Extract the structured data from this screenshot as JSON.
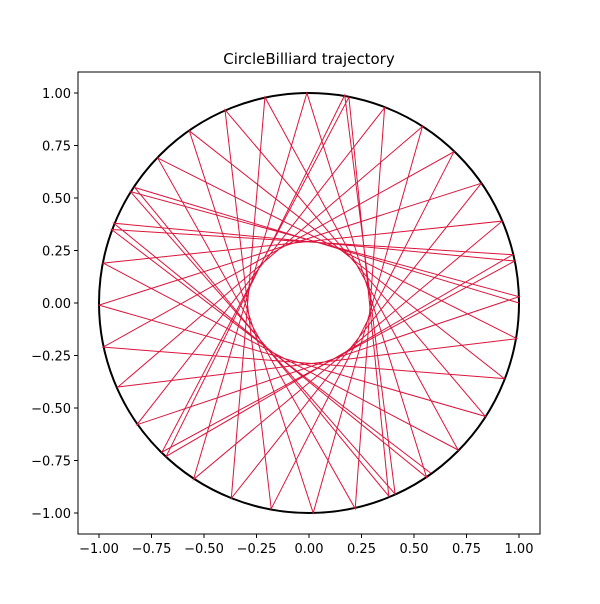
{
  "chart_data": {
    "type": "line",
    "title": "CircleBilliard trajectory",
    "xlim": [
      -1.1,
      1.1
    ],
    "ylim": [
      -1.1,
      1.1
    ],
    "xticks": [
      {
        "value": -1,
        "label": "−1.00"
      },
      {
        "value": -0.75,
        "label": "−0.75"
      },
      {
        "value": -0.5,
        "label": "−0.50"
      },
      {
        "value": -0.25,
        "label": "−0.25"
      },
      {
        "value": 0,
        "label": "0.00"
      },
      {
        "value": 0.25,
        "label": "0.25"
      },
      {
        "value": 0.5,
        "label": "0.50"
      },
      {
        "value": 0.75,
        "label": "0.75"
      },
      {
        "value": 1,
        "label": "1.00"
      }
    ],
    "yticks": [
      {
        "value": -1,
        "label": "−1.00"
      },
      {
        "value": -0.75,
        "label": "−0.75"
      },
      {
        "value": -0.5,
        "label": "−0.50"
      },
      {
        "value": -0.25,
        "label": "−0.25"
      },
      {
        "value": 0,
        "label": "0.00"
      },
      {
        "value": 0.25,
        "label": "0.25"
      },
      {
        "value": 0.5,
        "label": "0.50"
      },
      {
        "value": 0.75,
        "label": "0.75"
      },
      {
        "value": 1,
        "label": "1.00"
      }
    ],
    "boundary_radius": 1,
    "boundary_color": "#000000",
    "series": [
      {
        "color": "#dc143c",
        "x": [
          1,
          -0.83,
          0.38,
          0.19,
          -0.7,
          0.98,
          -0.93,
          0.56,
          -0.01,
          -0.55,
          0.92,
          -0.98,
          0.71,
          -0.21,
          -0.37,
          0.82,
          -1,
          0.84,
          -0.4,
          -0.18,
          0.69,
          -0.98,
          0.93,
          -0.57,
          0.02,
          0.54,
          -0.91,
          0.99,
          -0.72,
          0.22,
          0.36,
          -0.82,
          1,
          -0.85,
          0.41,
          0.17,
          -0.68,
          0.97,
          -0.94,
          0.58
        ],
        "values": [
          0,
          0.55,
          -0.92,
          0.98,
          -0.71,
          0.2,
          0.38,
          -0.83,
          1,
          -0.84,
          0.39,
          0.19,
          -0.7,
          0.98,
          -0.93,
          0.57,
          -0.01,
          -0.54,
          0.92,
          -0.98,
          0.72,
          -0.21,
          -0.36,
          0.82,
          -1,
          0.84,
          -0.4,
          -0.17,
          0.69,
          -0.98,
          0.93,
          -0.58,
          0.03,
          0.53,
          -0.91,
          0.99,
          -0.73,
          0.23,
          0.35,
          -0.81
        ]
      }
    ]
  }
}
